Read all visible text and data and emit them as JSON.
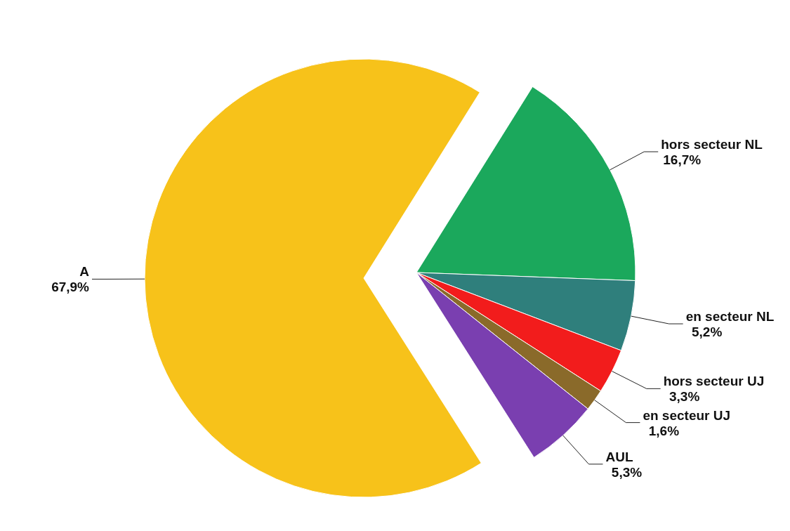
{
  "chart_data": {
    "type": "pie",
    "categories": [
      "hors secteur NL",
      "en secteur NL",
      "hors secteur UJ",
      "en secteur UJ",
      "AUL",
      "A"
    ],
    "values": [
      16.7,
      5.2,
      3.3,
      1.6,
      5.3,
      67.9
    ],
    "value_labels": [
      "16,7%",
      "5,2%",
      "3,3%",
      "1,6%",
      "5,3%",
      "67,9%"
    ],
    "colors": [
      "#1ba85c",
      "#2f7f7c",
      "#f21c1c",
      "#8a6a2a",
      "#7a3fb0",
      "#f7c21a"
    ],
    "legend": false
  }
}
